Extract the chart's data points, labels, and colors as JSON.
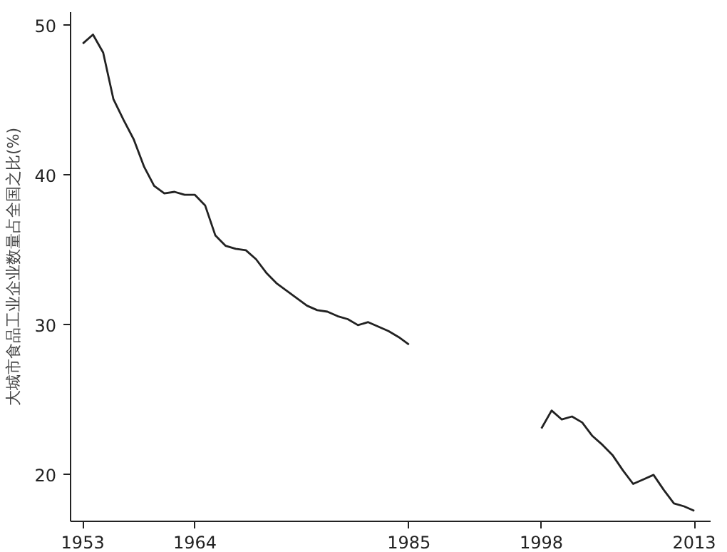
{
  "chart_data": {
    "type": "line",
    "ylabel": "大城市食品工业企业数量占全国之比(%)",
    "xlim": [
      1951.8,
      2014.6
    ],
    "xticks": [
      1953,
      1964,
      1985,
      1998,
      2013
    ],
    "ylim": [
      16.9,
      50.9
    ],
    "yticks": [
      20,
      30,
      40,
      50
    ],
    "grid": false,
    "marker": "none",
    "line_style": "solid",
    "series": [
      {
        "color": "#222222",
        "x": [
          1953,
          1954,
          1955,
          1956,
          1957,
          1958,
          1959,
          1960,
          1961,
          1962,
          1963,
          1964,
          1965,
          1966,
          1967,
          1968,
          1969,
          1970,
          1971,
          1972,
          1973,
          1974,
          1975,
          1976,
          1977,
          1978,
          1979,
          1980,
          1981,
          1982,
          1983,
          1984,
          1985
        ],
        "values": [
          48.8,
          49.4,
          48.2,
          45.1,
          43.7,
          42.4,
          40.6,
          39.3,
          38.8,
          38.9,
          38.7,
          38.7,
          38.0,
          36.0,
          35.3,
          35.1,
          35.0,
          34.4,
          33.5,
          32.8,
          32.3,
          31.8,
          31.3,
          31.0,
          30.9,
          30.6,
          30.4,
          30.0,
          30.2,
          29.9,
          29.6,
          29.2,
          28.7
        ]
      },
      {
        "color": "#222222",
        "x": [
          1998,
          1999,
          2000,
          2001,
          2002,
          2003,
          2004,
          2005,
          2006,
          2007,
          2008,
          2009,
          2010,
          2011,
          2012,
          2013
        ],
        "values": [
          23.1,
          24.3,
          23.7,
          23.9,
          23.5,
          22.6,
          22.0,
          21.3,
          20.3,
          19.4,
          19.7,
          20.0,
          19.0,
          18.1,
          17.9,
          17.6
        ]
      }
    ]
  }
}
